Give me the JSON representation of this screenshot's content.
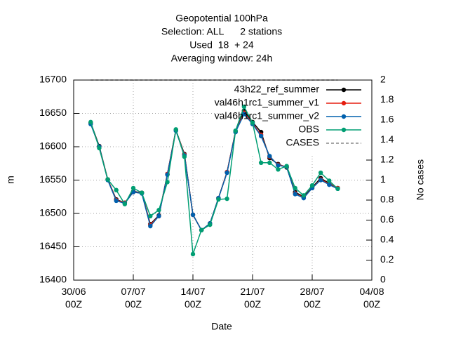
{
  "chart_data": {
    "type": "line",
    "title": "Geopotential 100hPa",
    "subtitles": [
      "Selection: ALL      2 stations",
      "Used  18  + 24",
      "Averaging window: 24h"
    ],
    "xlabel": "Date",
    "ylabel": "m",
    "y2label": "No cases",
    "x": [
      "02/07 00Z",
      "03/07 00Z",
      "04/07 00Z",
      "05/07 00Z",
      "06/07 00Z",
      "07/07 00Z",
      "08/07 00Z",
      "09/07 00Z",
      "10/07 00Z",
      "11/07 00Z",
      "12/07 00Z",
      "13/07 00Z",
      "14/07 00Z",
      "15/07 00Z",
      "16/07 00Z",
      "17/07 00Z",
      "18/07 00Z",
      "19/07 00Z",
      "20/07 00Z",
      "21/07 00Z",
      "22/07 00Z",
      "23/07 00Z",
      "24/07 00Z",
      "25/07 00Z",
      "26/07 00Z",
      "27/07 00Z",
      "28/07 00Z",
      "29/07 00Z",
      "30/07 00Z",
      "31/07 00Z"
    ],
    "series": [
      {
        "name": "43h22_ref_summer",
        "color": "#000000",
        "values": [
          16636,
          16601,
          16551,
          16521,
          16516,
          16533,
          16531,
          16484,
          16497,
          16559,
          16625,
          16589,
          16498,
          16475,
          16485,
          16523,
          16562,
          16623,
          16654,
          16637,
          16622,
          16583,
          16574,
          16569,
          16532,
          16525,
          16539,
          16553,
          16545,
          16538
        ]
      },
      {
        "name": "val46h1rc1_summer_v1",
        "color": "#e51e10",
        "values": [
          16635,
          16600,
          16551,
          16520,
          16516,
          16532,
          16531,
          16483,
          16496,
          16559,
          16625,
          16588,
          16498,
          16475,
          16485,
          16523,
          16562,
          16623,
          16651,
          16635,
          16618,
          16585,
          16573,
          16570,
          16530,
          16524,
          16538,
          16551,
          16544,
          16538
        ]
      },
      {
        "name": "val46h1rc1_summer_v2",
        "color": "#0060ad",
        "values": [
          16634,
          16600,
          16550,
          16519,
          16515,
          16532,
          16530,
          16481,
          16496,
          16558,
          16624,
          16587,
          16498,
          16475,
          16485,
          16523,
          16561,
          16622,
          16649,
          16634,
          16616,
          16586,
          16572,
          16570,
          16529,
          16523,
          16538,
          16550,
          16543,
          16537
        ]
      },
      {
        "name": "OBS",
        "color": "#009e73",
        "values": [
          16637,
          16598,
          16551,
          16535,
          16514,
          16538,
          16531,
          16496,
          16505,
          16547,
          16626,
          16585,
          16439,
          16475,
          16483,
          16521,
          16522,
          16624,
          16660,
          16636,
          16576,
          16576,
          16566,
          16571,
          16538,
          16527,
          16542,
          16561,
          16549,
          16537
        ]
      },
      {
        "name": "CASES",
        "color": "#888888",
        "axis": "y2",
        "dashed": true,
        "values": [
          2,
          2,
          2,
          2,
          2,
          2,
          2,
          2,
          2,
          2,
          2,
          2,
          2,
          2,
          2,
          2,
          2,
          2,
          2,
          2,
          2,
          2,
          2,
          2,
          2,
          2,
          2,
          2,
          2,
          2
        ]
      }
    ],
    "xlim": [
      "30/06 00Z",
      "04/08 00Z"
    ],
    "xticks": [
      "30/06 00Z",
      "07/07 00Z",
      "14/07 00Z",
      "21/07 00Z",
      "28/07 00Z",
      "04/08 00Z"
    ],
    "ylim": [
      16400,
      16700
    ],
    "yticks": [
      16400,
      16450,
      16500,
      16550,
      16600,
      16650,
      16700
    ],
    "y2lim": [
      0,
      2
    ],
    "y2ticks": [
      0,
      0.2,
      0.4,
      0.6,
      0.8,
      1,
      1.2,
      1.4,
      1.6,
      1.8,
      2
    ],
    "grid": true,
    "legend": "top-right"
  }
}
